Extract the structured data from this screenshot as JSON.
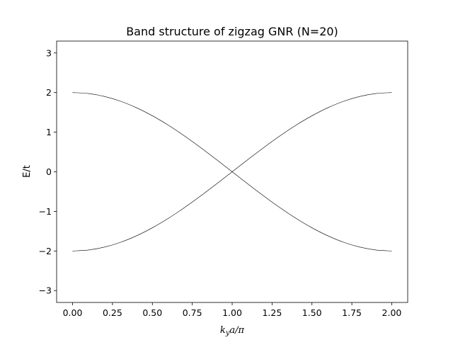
{
  "chart_data": {
    "type": "line",
    "title": "Band structure of zigzag GNR (N=20)",
    "xlabel": {
      "base": "k",
      "subscript": "y",
      "rest": "a/π"
    },
    "ylabel": "E/t",
    "xlim": [
      -0.1,
      2.1
    ],
    "ylim": [
      -3.3,
      3.3
    ],
    "xticks": [
      {
        "value": 0.0,
        "label": "0.00"
      },
      {
        "value": 0.25,
        "label": "0.25"
      },
      {
        "value": 0.5,
        "label": "0.50"
      },
      {
        "value": 0.75,
        "label": "0.75"
      },
      {
        "value": 1.0,
        "label": "1.00"
      },
      {
        "value": 1.25,
        "label": "1.25"
      },
      {
        "value": 1.5,
        "label": "1.50"
      },
      {
        "value": 1.75,
        "label": "1.75"
      },
      {
        "value": 2.0,
        "label": "2.00"
      }
    ],
    "yticks": [
      {
        "value": -3,
        "label": "−3"
      },
      {
        "value": -2,
        "label": "−2"
      },
      {
        "value": -1,
        "label": "−1"
      },
      {
        "value": 0,
        "label": "0"
      },
      {
        "value": 1,
        "label": "1"
      },
      {
        "value": 2,
        "label": "2"
      },
      {
        "value": 3,
        "label": "3"
      }
    ],
    "grid": false,
    "line_color": "#000000",
    "series": [
      {
        "x": [
          0.0,
          0.1,
          0.2,
          0.3,
          0.4,
          0.5,
          0.6,
          0.7,
          0.8,
          0.9,
          1.0,
          1.1,
          1.2,
          1.3,
          1.4,
          1.5,
          1.6,
          1.7,
          1.8,
          1.9,
          2.0
        ],
        "y": [
          2.0,
          1.975,
          1.902,
          1.782,
          1.618,
          1.414,
          1.176,
          0.908,
          0.618,
          0.313,
          0.0,
          -0.313,
          -0.618,
          -0.908,
          -1.176,
          -1.414,
          -1.618,
          -1.782,
          -1.902,
          -1.975,
          -2.0
        ]
      },
      {
        "x": [
          0.0,
          0.1,
          0.2,
          0.3,
          0.4,
          0.5,
          0.6,
          0.7,
          0.8,
          0.9,
          1.0,
          1.1,
          1.2,
          1.3,
          1.4,
          1.5,
          1.6,
          1.7,
          1.8,
          1.9,
          2.0
        ],
        "y": [
          -2.0,
          -1.975,
          -1.902,
          -1.782,
          -1.618,
          -1.414,
          -1.176,
          -0.908,
          -0.618,
          -0.313,
          0.0,
          0.313,
          0.618,
          0.908,
          1.176,
          1.414,
          1.618,
          1.782,
          1.902,
          1.975,
          2.0
        ]
      }
    ]
  }
}
